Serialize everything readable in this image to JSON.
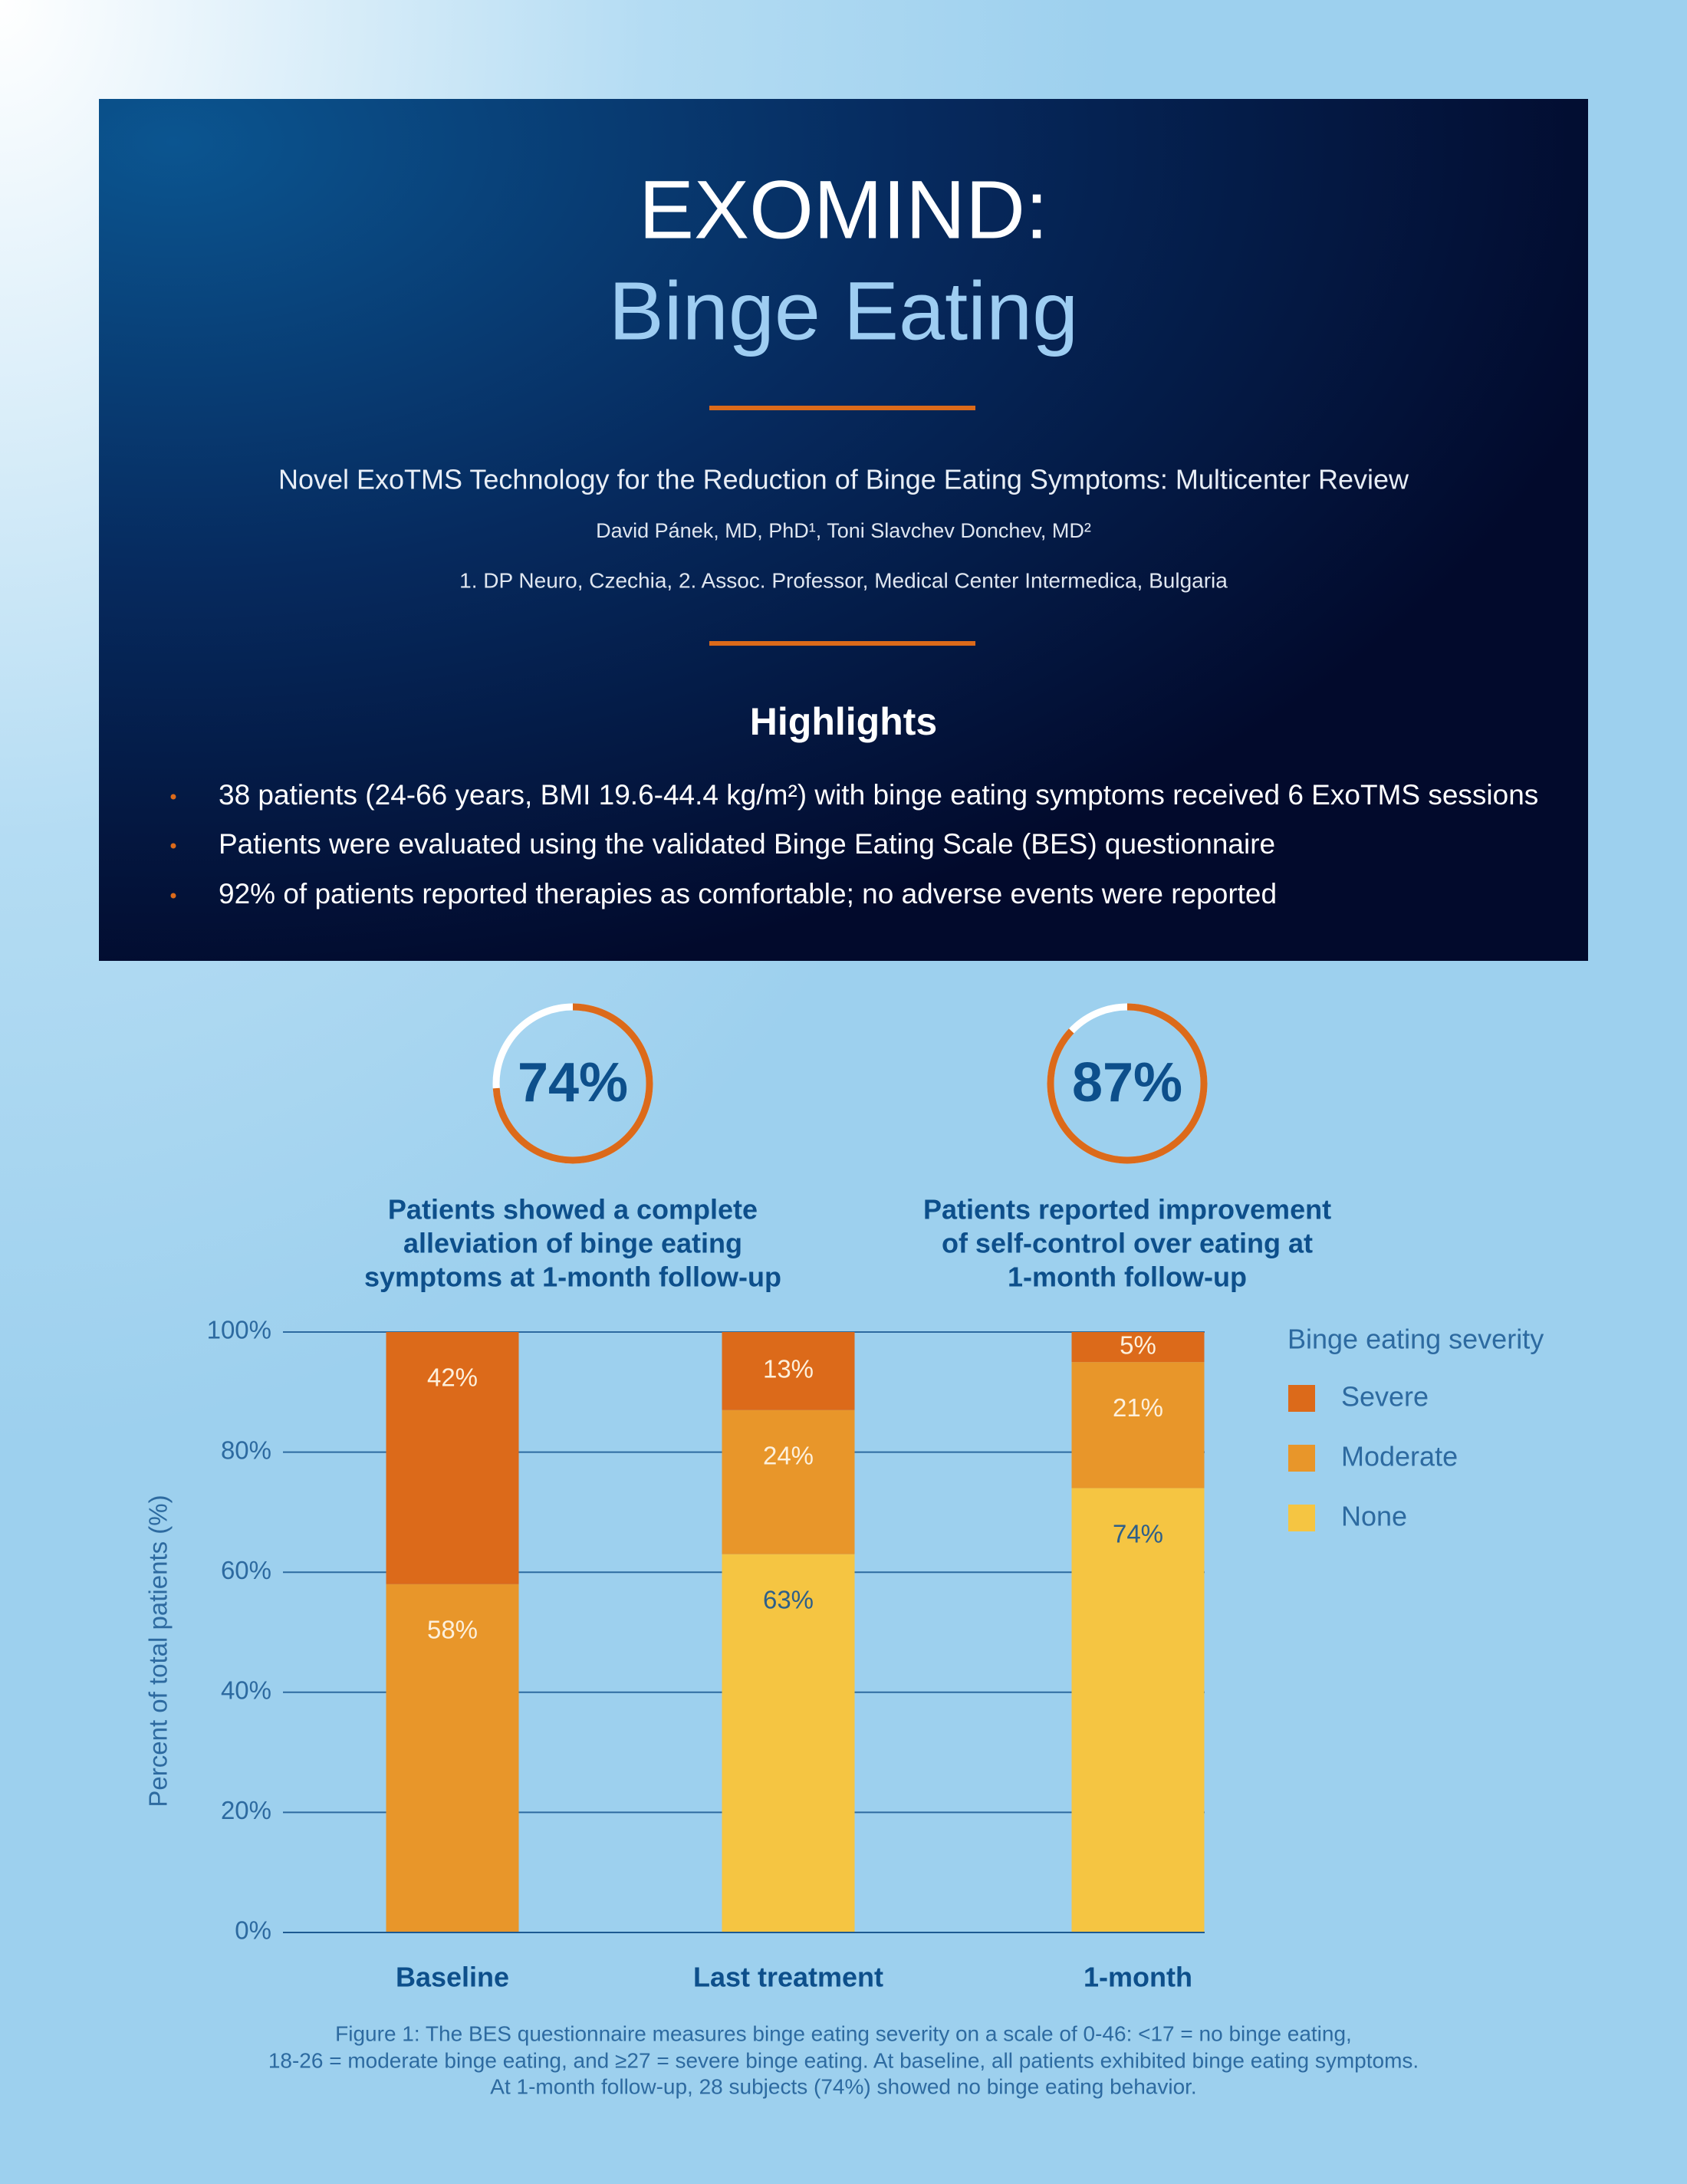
{
  "header": {
    "title": "EXOMIND:",
    "subtitle_title": "Binge Eating",
    "subtitle": "Novel ExoTMS Technology for the Reduction of Binge Eating Symptoms: Multicenter Review",
    "authors": "David Pánek, MD, PhD¹, Toni Slavchev Donchev, MD²",
    "affiliations": "1. DP Neuro, Czechia, 2. Assoc. Professor, Medical Center Intermedica, Bulgaria"
  },
  "highlights": {
    "heading": "Highlights",
    "items": [
      "38 patients (24-66 years, BMI 19.6-44.4 kg/m²) with binge eating symptoms received 6 ExoTMS sessions",
      "Patients were evaluated using the validated Binge Eating Scale (BES) questionnaire",
      "92% of patients reported therapies as comfortable; no adverse events were reported"
    ]
  },
  "stats": [
    {
      "value": 74,
      "label": "74%",
      "text": [
        "Patients showed a complete",
        "alleviation of binge eating",
        "symptoms at 1-month follow-up"
      ]
    },
    {
      "value": 87,
      "label": "87%",
      "text": [
        "Patients reported improvement",
        "of self-control over eating at",
        "1-month follow-up"
      ]
    }
  ],
  "chart_data": {
    "type": "bar",
    "stacked": true,
    "ylabel": "Percent of total patients (%)",
    "categories": [
      "Baseline",
      "Last treatment",
      "1-month"
    ],
    "series": [
      {
        "name": "None",
        "color": "#f5c542",
        "label_color": "#2d5f8a",
        "values": [
          0,
          63,
          74
        ],
        "value_labels": [
          null,
          "63%",
          "74%"
        ]
      },
      {
        "name": "Moderate",
        "color": "#e8962a",
        "label_color": "#fdf0dc",
        "values": [
          58,
          24,
          21
        ],
        "value_labels": [
          "58%",
          "24%",
          "21%"
        ]
      },
      {
        "name": "Severe",
        "color": "#dc6a1a",
        "label_color": "#fdf0dc",
        "values": [
          42,
          13,
          5
        ],
        "value_labels": [
          "42%",
          "13%",
          "5%"
        ]
      }
    ],
    "ylim": [
      0,
      100
    ],
    "yticks": [
      {
        "value": 0,
        "label": "0%"
      },
      {
        "value": 20,
        "label": "20%"
      },
      {
        "value": 40,
        "label": "40%"
      },
      {
        "value": 60,
        "label": "60%"
      },
      {
        "value": 80,
        "label": "80%"
      },
      {
        "value": 100,
        "label": "100%"
      }
    ],
    "grid": true,
    "legend_title": "Binge eating severity",
    "legend": "right"
  },
  "caption": [
    "Figure 1: The BES questionnaire measures binge eating severity on a scale of 0-46: <17 = no binge eating,",
    "18-26 = moderate binge eating, and ≥27 = severe binge eating. At baseline, all patients exhibited binge eating symptoms.",
    "At 1-month follow-up, 28 subjects (74%) showed no binge eating behavior."
  ]
}
